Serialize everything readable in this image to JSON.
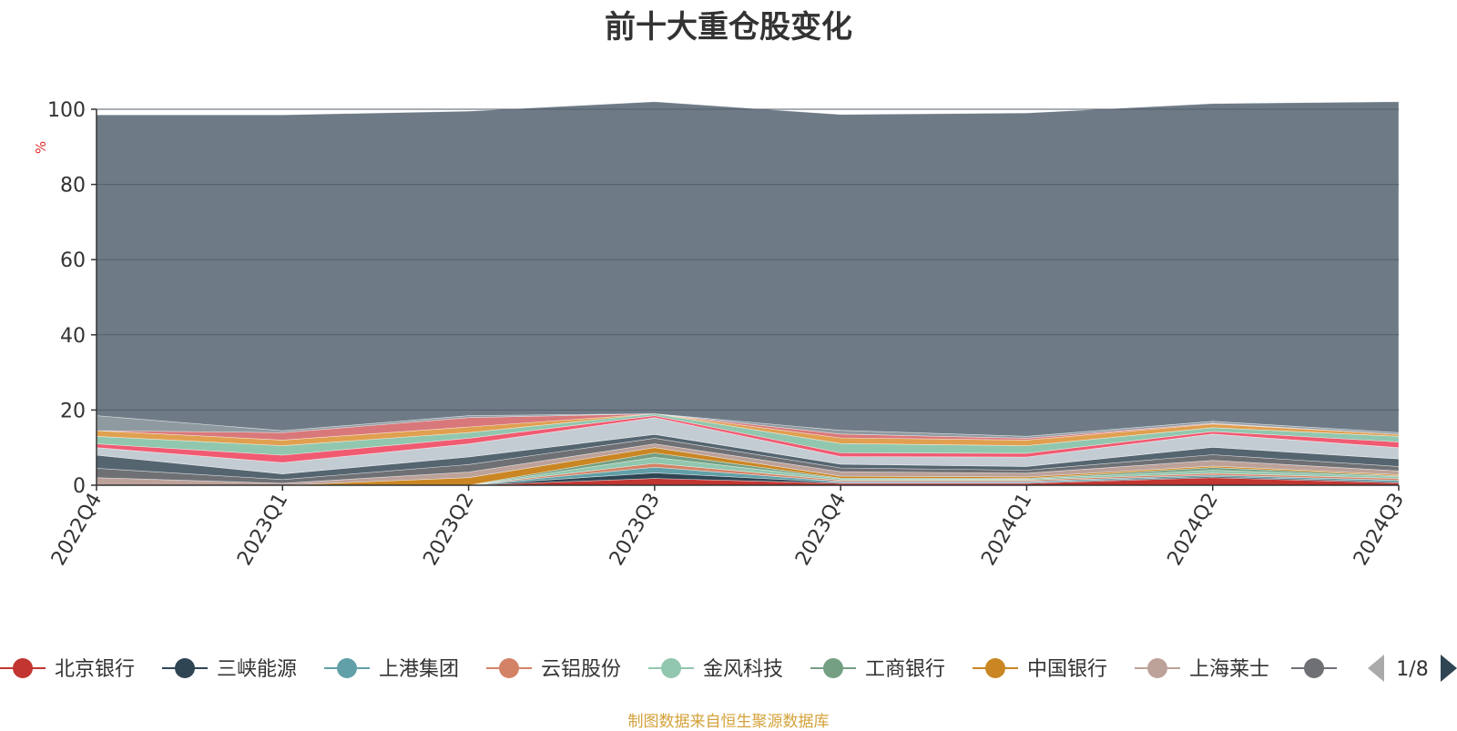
{
  "title": "前十大重仓股变化",
  "footer": "制图数据来自恒生聚源数据库",
  "legend_page": "1/8",
  "chart_data": {
    "type": "area",
    "stacked": true,
    "title": "前十大重仓股变化",
    "ylabel": "%",
    "ylim": [
      0,
      100
    ],
    "yticks": [
      0,
      20,
      40,
      60,
      80,
      100
    ],
    "grid": true,
    "legend_position": "bottom",
    "categories": [
      "2022Q4",
      "2023Q1",
      "2023Q2",
      "2023Q3",
      "2023Q4",
      "2024Q1",
      "2024Q2",
      "2024Q3"
    ],
    "series": [
      {
        "name": "北京银行",
        "color": "#c23531",
        "values": [
          0.0,
          0.0,
          0.0,
          1.8,
          0.5,
          0.5,
          2.0,
          0.6
        ]
      },
      {
        "name": "三峡能源",
        "color": "#2f4554",
        "values": [
          0.0,
          0.0,
          0.0,
          1.5,
          0.2,
          0.2,
          0.3,
          0.3
        ]
      },
      {
        "name": "上港集团",
        "color": "#61a0a8",
        "values": [
          0.0,
          0.0,
          0.0,
          1.5,
          0.3,
          0.3,
          0.4,
          0.4
        ]
      },
      {
        "name": "云铝股份",
        "color": "#d48265",
        "values": [
          0.0,
          0.0,
          0.0,
          1.0,
          0.3,
          0.3,
          0.5,
          0.5
        ]
      },
      {
        "name": "金风科技",
        "color": "#91c7ae",
        "values": [
          0.0,
          0.0,
          0.0,
          1.6,
          0.4,
          0.3,
          0.8,
          0.5
        ]
      },
      {
        "name": "工商银行",
        "color": "#749f83",
        "values": [
          0.0,
          0.0,
          0.0,
          1.2,
          0.2,
          0.2,
          0.7,
          0.2
        ]
      },
      {
        "name": "中国银行",
        "color": "#ca8622",
        "values": [
          0.0,
          0.0,
          2.0,
          1.4,
          0.5,
          0.4,
          0.4,
          0.3
        ]
      },
      {
        "name": "上海莱士",
        "color": "#bda29a",
        "values": [
          2.0,
          0.5,
          1.5,
          1.0,
          1.2,
          1.0,
          1.5,
          1.0
        ]
      },
      {
        "name": "",
        "color": "#6e7074",
        "values": [
          2.5,
          1.0,
          2.0,
          1.5,
          1.0,
          0.8,
          1.5,
          1.2
        ]
      },
      {
        "name": "",
        "color": "#546570",
        "values": [
          3.5,
          1.5,
          2.0,
          1.0,
          1.0,
          1.0,
          2.0,
          2.0
        ]
      },
      {
        "name": "",
        "color": "#c4ccd3",
        "values": [
          2.0,
          3.0,
          3.5,
          4.5,
          2.0,
          2.5,
          3.5,
          3.0
        ]
      },
      {
        "name": "",
        "color": "#f05b72",
        "values": [
          1.0,
          2.0,
          1.5,
          0.5,
          1.0,
          1.0,
          0.7,
          1.5
        ]
      },
      {
        "name": "",
        "color": "#91c7ae",
        "values": [
          2.0,
          2.5,
          1.5,
          0.5,
          2.5,
          2.0,
          1.0,
          1.5
        ]
      },
      {
        "name": "",
        "color": "#e0a050",
        "values": [
          1.5,
          1.5,
          1.5,
          0.0,
          1.5,
          1.5,
          1.0,
          0.5
        ]
      },
      {
        "name": "",
        "color": "#d9787a",
        "values": [
          0.0,
          2.0,
          2.5,
          0.0,
          1.0,
          0.5,
          0.2,
          0.0
        ]
      },
      {
        "name": "",
        "color": "#8f9aa0",
        "values": [
          4.0,
          0.5,
          0.5,
          0.0,
          1.0,
          0.5,
          0.5,
          0.5
        ]
      },
      {
        "name": "",
        "color": "#6e7b87",
        "values": [
          80.0,
          84.0,
          81.0,
          83.0,
          84.0,
          86.0,
          84.5,
          88.0
        ]
      }
    ]
  }
}
